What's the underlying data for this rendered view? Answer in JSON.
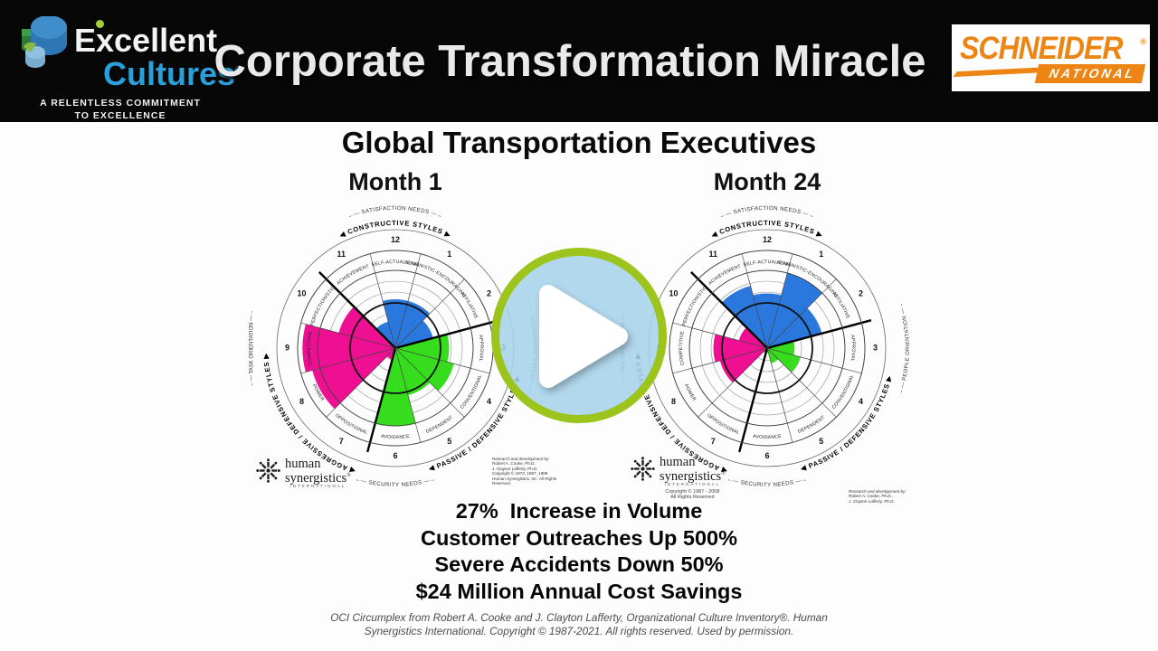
{
  "header": {
    "title": "Corporate Transformation Miracle",
    "brand": {
      "word1": "Excellent",
      "word2": "Cultures",
      "reg": "®",
      "tagline1": "A RELENTLESS COMMITMENT",
      "tagline2": "TO EXCELLENCE"
    },
    "partner": {
      "name": "SCHNEIDER",
      "reg": "®",
      "sub": "NATIONAL"
    }
  },
  "main": {
    "heading": "Global Transportation Executives",
    "stats": [
      "27%  Increase in Volume",
      "Customer Outreaches Up 500%",
      "Severe Accidents Down 50%",
      "$24 Million Annual Cost Savings"
    ],
    "footer": {
      "line1": "OCI Circumplex from Robert A. Cooke and J. Clayton Lafferty, Organizational Culture Inventory®.  Human",
      "line2": "Synergistics International. Copyright © 1987-2021. All rights reserved.  Used by permission."
    }
  },
  "circumplex_common": {
    "colors": {
      "constructive": "#2a78dd",
      "passive": "#35dd1c",
      "aggressive": "#ee0f92"
    },
    "arc_labels": {
      "constructive": "CONSTRUCTIVE STYLES",
      "passive": "PASSIVE / DEFENSIVE STYLES",
      "aggressive": "AGGRESSIVE / DEFENSIVE STYLES"
    },
    "axis_labels": {
      "satisfaction": "SATISFACTION NEEDS",
      "security": "SECURITY NEEDS",
      "task": "TASK ORIENTATION",
      "people": "PEOPLE ORIENTATION"
    },
    "logo": {
      "word1": "human",
      "word2": "synergistics",
      "reg": "®",
      "sub": "INTERNATIONAL"
    }
  },
  "chart_data": [
    {
      "type": "circumplex",
      "title": "Month 1",
      "scale_note": "values are fraction of outer percentile ring (0-1)",
      "sectors": [
        {
          "num": 1,
          "label": "HUMANISTIC-ENCOURAGING",
          "group": "constructive",
          "value": 0.5
        },
        {
          "num": 2,
          "label": "AFFILIATIVE",
          "group": "constructive",
          "value": 0.4
        },
        {
          "num": 3,
          "label": "APPROVAL",
          "group": "passive",
          "value": 0.55
        },
        {
          "num": 4,
          "label": "CONVENTIONAL",
          "group": "passive",
          "value": 0.62
        },
        {
          "num": 5,
          "label": "DEPENDENT",
          "group": "passive",
          "value": 0.5
        },
        {
          "num": 6,
          "label": "AVOIDANCE",
          "group": "passive",
          "value": 0.8
        },
        {
          "num": 7,
          "label": "OPPOSITIONAL",
          "group": "aggressive",
          "value": 0.12
        },
        {
          "num": 8,
          "label": "POWER",
          "group": "aggressive",
          "value": 0.88
        },
        {
          "num": 9,
          "label": "COMPETITIVE",
          "group": "aggressive",
          "value": 0.95
        },
        {
          "num": 10,
          "label": "PERFECTIONISTIC",
          "group": "aggressive",
          "value": 0.6
        },
        {
          "num": 11,
          "label": "ACHIEVEMENT",
          "group": "constructive",
          "value": 0.28
        },
        {
          "num": 12,
          "label": "SELF-ACTUALIZING",
          "group": "constructive",
          "value": 0.5
        }
      ],
      "credits": [
        "Research and development by:",
        "Robert A. Cooke, Ph.D.",
        "J. Clayton Lafferty, Ph.D.",
        "Copyright © 1973, 1987, 1989",
        "Human Synergistics, Inc. All Rights Reserved."
      ]
    },
    {
      "type": "circumplex",
      "title": "Month 24",
      "scale_note": "values are fraction of outer percentile ring (0-1)",
      "sectors": [
        {
          "num": 1,
          "label": "HUMANISTIC-ENCOURAGING",
          "group": "constructive",
          "value": 0.8
        },
        {
          "num": 2,
          "label": "AFFILIATIVE",
          "group": "constructive",
          "value": 0.58
        },
        {
          "num": 3,
          "label": "APPROVAL",
          "group": "passive",
          "value": 0.28
        },
        {
          "num": 4,
          "label": "CONVENTIONAL",
          "group": "passive",
          "value": 0.35
        },
        {
          "num": 5,
          "label": "DEPENDENT",
          "group": "passive",
          "value": 0.16
        },
        {
          "num": 6,
          "label": "AVOIDANCE",
          "group": "passive",
          "value": 0.05
        },
        {
          "num": 7,
          "label": "OPPOSITIONAL",
          "group": "aggressive",
          "value": 0.05
        },
        {
          "num": 8,
          "label": "POWER",
          "group": "aggressive",
          "value": 0.5
        },
        {
          "num": 9,
          "label": "COMPETITIVE",
          "group": "aggressive",
          "value": 0.55
        },
        {
          "num": 10,
          "label": "PERFECTIONISTIC",
          "group": "aggressive",
          "value": 0.3
        },
        {
          "num": 11,
          "label": "ACHIEVEMENT",
          "group": "constructive",
          "value": 0.66
        },
        {
          "num": 12,
          "label": "SELF-ACTUALIZING",
          "group": "constructive",
          "value": 0.56
        }
      ],
      "copyright": [
        "Copyright © 1987 - 2008",
        "All Rights Reserved"
      ],
      "credits": [
        "Research and development by:",
        "Robert A. Cooke, Ph.D.,",
        "J. Clayton Lafferty, Ph.D."
      ]
    }
  ],
  "player": {
    "icon": "play"
  }
}
